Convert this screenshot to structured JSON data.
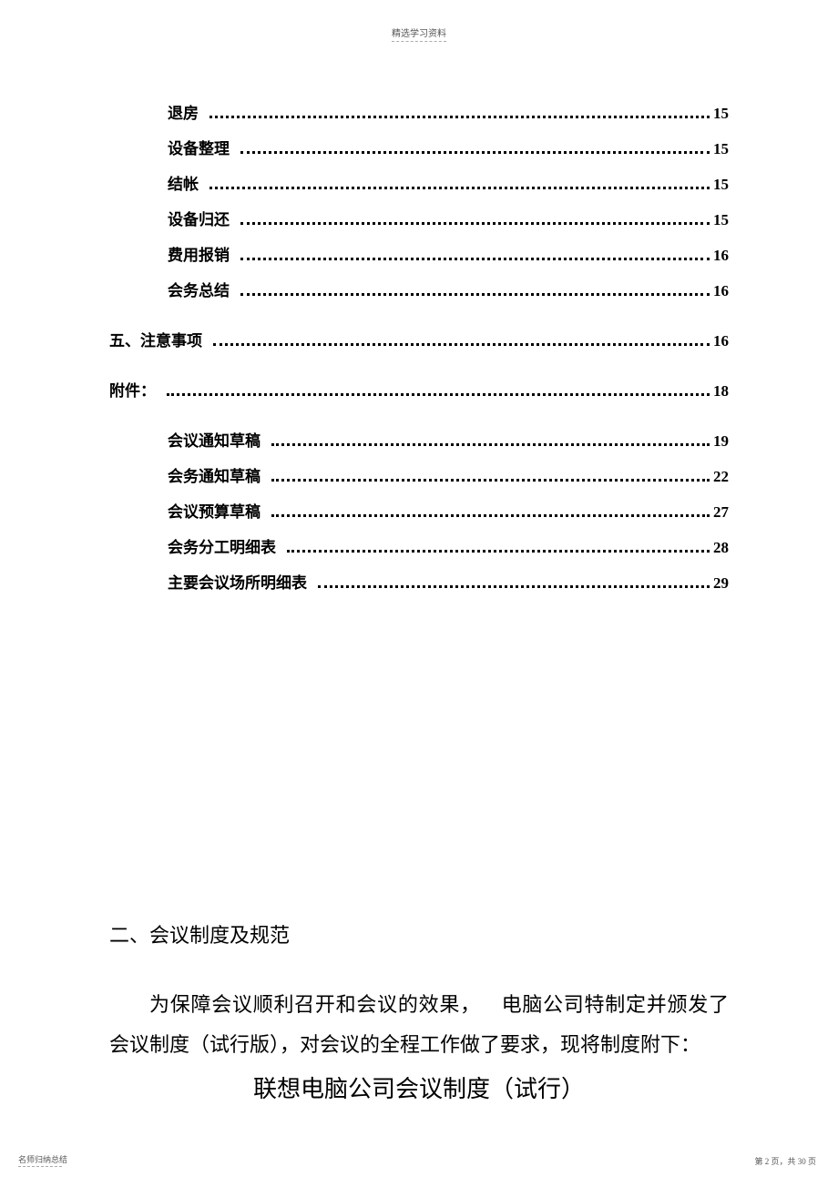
{
  "header": {
    "text": "精选学习资料"
  },
  "toc": [
    {
      "level": 2,
      "label": "退房",
      "page": "15"
    },
    {
      "level": 2,
      "label": "设备整理",
      "page": "15"
    },
    {
      "level": 2,
      "label": "结帐",
      "page": "15"
    },
    {
      "level": 2,
      "label": "设备归还",
      "page": "15"
    },
    {
      "level": 2,
      "label": "费用报销",
      "page": "16"
    },
    {
      "level": 2,
      "label": "会务总结",
      "page": "16"
    },
    {
      "level": 1,
      "label": "五、注意事项",
      "page": "16"
    },
    {
      "level": 1,
      "label": "附件：",
      "page": "18"
    },
    {
      "level": 2,
      "label": "会议通知草稿",
      "page": "19"
    },
    {
      "level": 2,
      "label": "会务通知草稿",
      "page": "22"
    },
    {
      "level": 2,
      "label": "会议预算草稿",
      "page": "27"
    },
    {
      "level": 2,
      "label": "会务分工明细表",
      "page": "28"
    },
    {
      "level": 2,
      "label": "主要会议场所明细表",
      "page": "29"
    }
  ],
  "body": {
    "heading": "二、会议制度及规范",
    "paragraph_part1": "为保障会议顺利召开和会议的效果，",
    "paragraph_part2": "电脑公司特制定并颁发了会议制度（试行版），对会议的全程工作做了要求，现将制度附下：",
    "title": "联想电脑公司会议制度（试行）"
  },
  "footer": {
    "left": "名师归纳总结",
    "right": "第 2 页，共 30 页"
  }
}
